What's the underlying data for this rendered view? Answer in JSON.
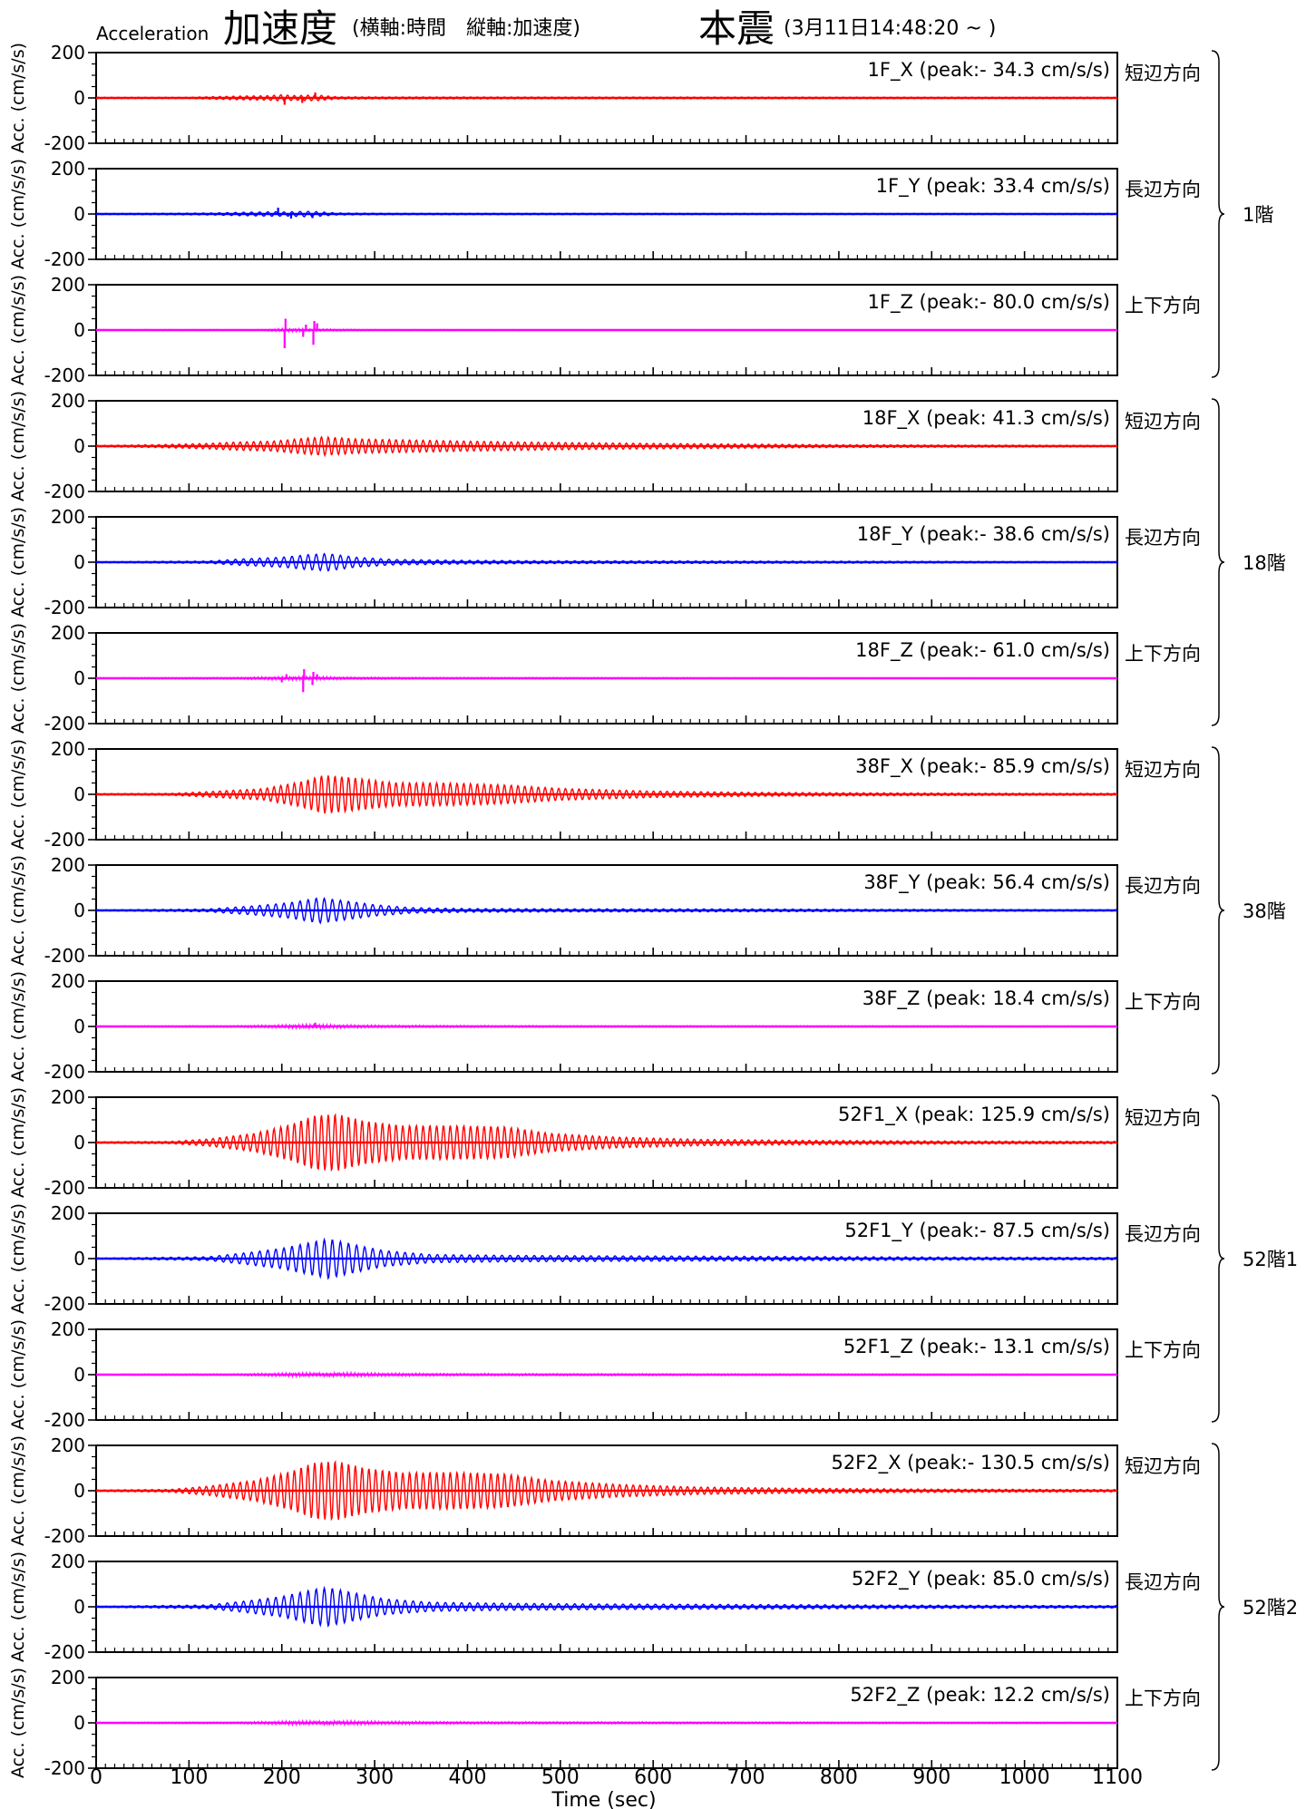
{
  "header": {
    "label_en": "Acceleration",
    "title_ja": "加速度",
    "axes_note": "(横軸:時間　縦軸:加速度)",
    "event": "本震",
    "datetime": "(3月11日14:48:20 ~ )"
  },
  "chart_data": {
    "type": "line",
    "title": "Acceleration 加速度",
    "xlabel": "Time (sec)",
    "ylabel": "Acc. (cm/s/s)",
    "xlim": [
      0,
      1100
    ],
    "ylim": [
      -200,
      200
    ],
    "xticks": [
      0,
      100,
      200,
      300,
      400,
      500,
      600,
      700,
      800,
      900,
      1000,
      1100
    ],
    "yticks": [
      -200,
      0,
      200
    ],
    "colors": {
      "X": "#ff0000",
      "Y": "#0000ff",
      "Z": "#ff00ff"
    },
    "direction_labels": {
      "X": "短辺方向",
      "Y": "長辺方向",
      "Z": "上下方向"
    },
    "series": [
      {
        "name": "1F_X",
        "label": "1F_X (peak:- 34.3 cm/s/s)",
        "peak": -34.3,
        "component": "X",
        "floor": "1階",
        "env": [
          [
            0,
            3
          ],
          [
            100,
            3
          ],
          [
            150,
            8
          ],
          [
            185,
            10
          ],
          [
            200,
            14
          ],
          [
            215,
            10
          ],
          [
            225,
            12
          ],
          [
            240,
            12
          ],
          [
            260,
            5
          ],
          [
            320,
            4
          ],
          [
            1100,
            3
          ]
        ],
        "spikes": [
          [
            203,
            -30
          ],
          [
            222,
            -22
          ],
          [
            236,
            24
          ]
        ]
      },
      {
        "name": "1F_Y",
        "label": "1F_Y (peak: 33.4 cm/s/s)",
        "peak": 33.4,
        "component": "Y",
        "floor": "1階",
        "env": [
          [
            0,
            2
          ],
          [
            120,
            4
          ],
          [
            150,
            7
          ],
          [
            190,
            10
          ],
          [
            205,
            9
          ],
          [
            225,
            12
          ],
          [
            240,
            10
          ],
          [
            260,
            4
          ],
          [
            320,
            3
          ],
          [
            1100,
            2
          ]
        ],
        "spikes": [
          [
            196,
            28
          ],
          [
            210,
            -20
          ],
          [
            233,
            -18
          ]
        ]
      },
      {
        "name": "1F_Z",
        "label": "1F_Z (peak:- 80.0 cm/s/s)",
        "peak": -80.0,
        "component": "Z",
        "floor": "1階",
        "env": [
          [
            0,
            2
          ],
          [
            180,
            2
          ],
          [
            200,
            6
          ],
          [
            220,
            6
          ],
          [
            240,
            4
          ],
          [
            300,
            2
          ],
          [
            1100,
            1
          ]
        ],
        "spikes": [
          [
            203,
            -80
          ],
          [
            204,
            50
          ],
          [
            223,
            -30
          ],
          [
            226,
            24
          ],
          [
            234,
            -65
          ],
          [
            235,
            40
          ],
          [
            238,
            30
          ]
        ]
      },
      {
        "name": "18F_X",
        "label": "18F_X (peak: 41.3 cm/s/s)",
        "peak": 41.3,
        "component": "X",
        "floor": "18階",
        "env": [
          [
            0,
            3
          ],
          [
            60,
            6
          ],
          [
            120,
            12
          ],
          [
            150,
            18
          ],
          [
            190,
            22
          ],
          [
            225,
            35
          ],
          [
            245,
            41
          ],
          [
            280,
            32
          ],
          [
            330,
            28
          ],
          [
            400,
            22
          ],
          [
            500,
            16
          ],
          [
            600,
            12
          ],
          [
            700,
            9
          ],
          [
            800,
            6
          ],
          [
            900,
            5
          ],
          [
            1100,
            3
          ]
        ],
        "spikes": []
      },
      {
        "name": "18F_Y",
        "label": "18F_Y (peak:- 38.6 cm/s/s)",
        "peak": -38.6,
        "component": "Y",
        "floor": "18階",
        "env": [
          [
            0,
            2
          ],
          [
            120,
            5
          ],
          [
            160,
            15
          ],
          [
            200,
            22
          ],
          [
            230,
            34
          ],
          [
            250,
            38
          ],
          [
            280,
            22
          ],
          [
            320,
            12
          ],
          [
            400,
            8
          ],
          [
            500,
            6
          ],
          [
            700,
            5
          ],
          [
            850,
            4
          ],
          [
            1100,
            2
          ]
        ],
        "spikes": []
      },
      {
        "name": "18F_Z",
        "label": "18F_Z (peak:- 61.0 cm/s/s)",
        "peak": -61.0,
        "component": "Z",
        "floor": "18階",
        "env": [
          [
            0,
            2
          ],
          [
            150,
            3
          ],
          [
            195,
            6
          ],
          [
            225,
            7
          ],
          [
            245,
            6
          ],
          [
            270,
            4
          ],
          [
            350,
            3
          ],
          [
            1100,
            1
          ]
        ],
        "spikes": [
          [
            200,
            -18
          ],
          [
            205,
            18
          ],
          [
            223,
            -61
          ],
          [
            224,
            40
          ],
          [
            233,
            -30
          ],
          [
            234,
            28
          ],
          [
            238,
            18
          ]
        ]
      },
      {
        "name": "38F_X",
        "label": "38F_X (peak:- 85.9 cm/s/s)",
        "peak": -85.9,
        "component": "X",
        "floor": "38階",
        "env": [
          [
            0,
            3
          ],
          [
            80,
            4
          ],
          [
            120,
            12
          ],
          [
            180,
            25
          ],
          [
            220,
            55
          ],
          [
            245,
            85
          ],
          [
            280,
            72
          ],
          [
            320,
            52
          ],
          [
            380,
            50
          ],
          [
            440,
            42
          ],
          [
            500,
            26
          ],
          [
            600,
            14
          ],
          [
            700,
            9
          ],
          [
            800,
            7
          ],
          [
            950,
            5
          ],
          [
            1100,
            4
          ]
        ],
        "spikes": []
      },
      {
        "name": "38F_Y",
        "label": "38F_Y (peak: 56.4 cm/s/s)",
        "peak": 56.4,
        "component": "Y",
        "floor": "38階",
        "env": [
          [
            0,
            2
          ],
          [
            120,
            6
          ],
          [
            170,
            20
          ],
          [
            210,
            35
          ],
          [
            240,
            56
          ],
          [
            265,
            44
          ],
          [
            300,
            25
          ],
          [
            340,
            12
          ],
          [
            400,
            8
          ],
          [
            500,
            7
          ],
          [
            700,
            6
          ],
          [
            900,
            4
          ],
          [
            1100,
            3
          ]
        ],
        "spikes": []
      },
      {
        "name": "38F_Z",
        "label": "38F_Z (peak: 18.4 cm/s/s)",
        "peak": 18.4,
        "component": "Z",
        "floor": "38階",
        "env": [
          [
            0,
            2
          ],
          [
            150,
            3
          ],
          [
            200,
            6
          ],
          [
            235,
            9
          ],
          [
            260,
            6
          ],
          [
            330,
            4
          ],
          [
            500,
            3
          ],
          [
            1100,
            2
          ]
        ],
        "spikes": [
          [
            236,
            17
          ]
        ]
      },
      {
        "name": "52F1_X",
        "label": "52F1_X (peak: 125.9 cm/s/s)",
        "peak": 125.9,
        "component": "X",
        "floor": "52階1",
        "env": [
          [
            0,
            3
          ],
          [
            80,
            5
          ],
          [
            120,
            15
          ],
          [
            170,
            40
          ],
          [
            210,
            80
          ],
          [
            235,
            120
          ],
          [
            260,
            125
          ],
          [
            290,
            95
          ],
          [
            330,
            75
          ],
          [
            380,
            75
          ],
          [
            440,
            70
          ],
          [
            490,
            40
          ],
          [
            560,
            24
          ],
          [
            650,
            14
          ],
          [
            750,
            10
          ],
          [
            900,
            7
          ],
          [
            1100,
            5
          ]
        ],
        "spikes": []
      },
      {
        "name": "52F1_Y",
        "label": "52F1_Y (peak:- 87.5 cm/s/s)",
        "peak": -87.5,
        "component": "Y",
        "floor": "52階1",
        "env": [
          [
            0,
            2
          ],
          [
            120,
            8
          ],
          [
            160,
            25
          ],
          [
            200,
            45
          ],
          [
            235,
            75
          ],
          [
            250,
            88
          ],
          [
            280,
            60
          ],
          [
            310,
            35
          ],
          [
            360,
            18
          ],
          [
            450,
            14
          ],
          [
            550,
            12
          ],
          [
            700,
            10
          ],
          [
            900,
            7
          ],
          [
            1100,
            5
          ]
        ],
        "spikes": []
      },
      {
        "name": "52F1_Z",
        "label": "52F1_Z (peak:- 13.1 cm/s/s)",
        "peak": -13.1,
        "component": "Z",
        "floor": "52階1",
        "env": [
          [
            0,
            2
          ],
          [
            150,
            3
          ],
          [
            210,
            7
          ],
          [
            250,
            9
          ],
          [
            300,
            6
          ],
          [
            400,
            4
          ],
          [
            1100,
            2
          ]
        ],
        "spikes": []
      },
      {
        "name": "52F2_X",
        "label": "52F2_X (peak:- 130.5 cm/s/s)",
        "peak": -130.5,
        "component": "X",
        "floor": "52階2",
        "env": [
          [
            0,
            3
          ],
          [
            80,
            6
          ],
          [
            120,
            20
          ],
          [
            170,
            45
          ],
          [
            210,
            85
          ],
          [
            235,
            125
          ],
          [
            260,
            130
          ],
          [
            290,
            100
          ],
          [
            330,
            80
          ],
          [
            380,
            82
          ],
          [
            440,
            75
          ],
          [
            490,
            45
          ],
          [
            560,
            28
          ],
          [
            650,
            16
          ],
          [
            750,
            11
          ],
          [
            900,
            7
          ],
          [
            1100,
            5
          ]
        ],
        "spikes": []
      },
      {
        "name": "52F2_Y",
        "label": "52F2_Y (peak: 85.0 cm/s/s)",
        "peak": 85.0,
        "component": "Y",
        "floor": "52階2",
        "env": [
          [
            0,
            2
          ],
          [
            120,
            8
          ],
          [
            160,
            25
          ],
          [
            200,
            45
          ],
          [
            235,
            78
          ],
          [
            250,
            85
          ],
          [
            280,
            60
          ],
          [
            310,
            35
          ],
          [
            360,
            20
          ],
          [
            450,
            15
          ],
          [
            550,
            12
          ],
          [
            700,
            10
          ],
          [
            900,
            7
          ],
          [
            1100,
            5
          ]
        ],
        "spikes": []
      },
      {
        "name": "52F2_Z",
        "label": "52F2_Z (peak: 12.2 cm/s/s)",
        "peak": 12.2,
        "component": "Z",
        "floor": "52階2",
        "env": [
          [
            0,
            2
          ],
          [
            150,
            3
          ],
          [
            210,
            7
          ],
          [
            250,
            9
          ],
          [
            300,
            6
          ],
          [
            400,
            4
          ],
          [
            1100,
            2
          ]
        ],
        "spikes": []
      }
    ],
    "groups": [
      {
        "label": "1階",
        "series": [
          "1F_X",
          "1F_Y",
          "1F_Z"
        ]
      },
      {
        "label": "18階",
        "series": [
          "18F_X",
          "18F_Y",
          "18F_Z"
        ]
      },
      {
        "label": "38階",
        "series": [
          "38F_X",
          "38F_Y",
          "38F_Z"
        ]
      },
      {
        "label": "52階1",
        "series": [
          "52F1_X",
          "52F1_Y",
          "52F1_Z"
        ]
      },
      {
        "label": "52階2",
        "series": [
          "52F2_X",
          "52F2_Y",
          "52F2_Z"
        ]
      }
    ]
  }
}
